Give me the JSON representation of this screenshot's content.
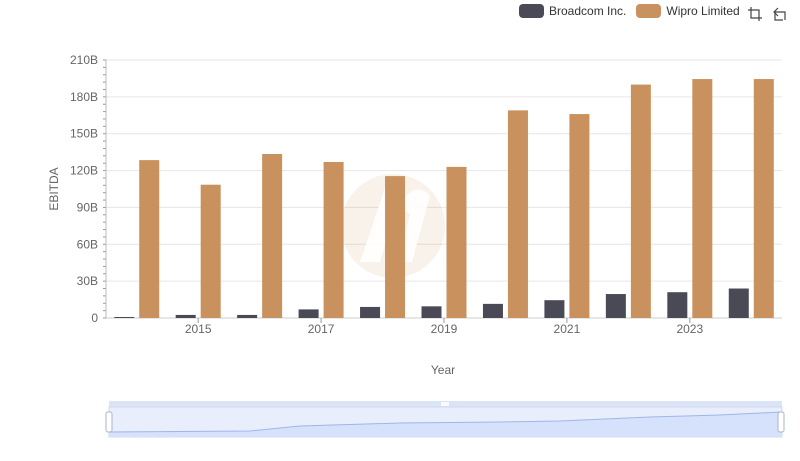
{
  "chart_data": {
    "type": "bar",
    "xlabel": "Year",
    "ylabel": "EBITDA",
    "ylim": [
      0,
      210
    ],
    "yticks": [
      0,
      30,
      60,
      90,
      120,
      150,
      180,
      210
    ],
    "ytick_labels": [
      "0",
      "30B",
      "60B",
      "90B",
      "120B",
      "150B",
      "180B",
      "210B"
    ],
    "categories": [
      "2014",
      "2015",
      "2016",
      "2017",
      "2018",
      "2019",
      "2020",
      "2021",
      "2022",
      "2023",
      "2024"
    ],
    "xtick_labels": [
      "2015",
      "2017",
      "2019",
      "2021",
      "2023"
    ],
    "series": [
      {
        "name": "Broadcom Inc.",
        "color": "#4a4a56",
        "values": [
          0.8,
          2.5,
          2.5,
          7,
          9,
          9.5,
          11.5,
          14.5,
          19.5,
          21,
          24
        ]
      },
      {
        "name": "Wipro Limited",
        "color": "#c8915e",
        "values": [
          128.5,
          108.5,
          133.5,
          127,
          115.5,
          123,
          169,
          166,
          190,
          194.5,
          194.5
        ]
      }
    ],
    "legend_position": "top-right"
  },
  "toolbar": {
    "zoom_icon": "zoom-select-icon",
    "reset_icon": "zoom-reset-icon"
  }
}
